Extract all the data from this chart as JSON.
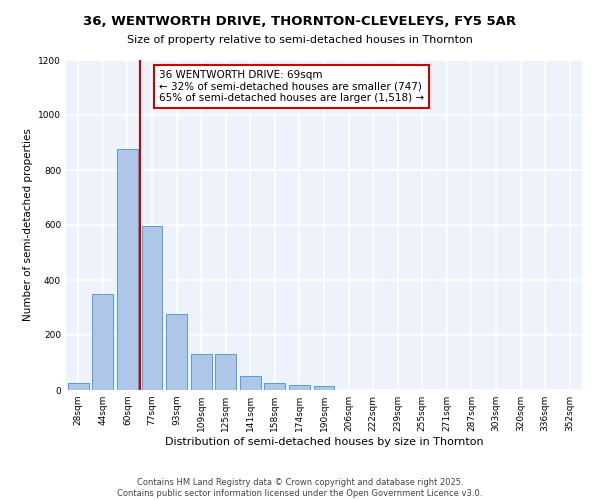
{
  "title": "36, WENTWORTH DRIVE, THORNTON-CLEVELEYS, FY5 5AR",
  "subtitle": "Size of property relative to semi-detached houses in Thornton",
  "xlabel": "Distribution of semi-detached houses by size in Thornton",
  "ylabel": "Number of semi-detached properties",
  "bins": [
    "28sqm",
    "44sqm",
    "60sqm",
    "77sqm",
    "93sqm",
    "109sqm",
    "125sqm",
    "141sqm",
    "158sqm",
    "174sqm",
    "190sqm",
    "206sqm",
    "222sqm",
    "239sqm",
    "255sqm",
    "271sqm",
    "287sqm",
    "303sqm",
    "320sqm",
    "336sqm",
    "352sqm"
  ],
  "values": [
    25,
    350,
    875,
    595,
    275,
    130,
    130,
    50,
    25,
    20,
    13,
    0,
    0,
    0,
    0,
    0,
    0,
    0,
    0,
    0,
    0
  ],
  "property_bin_index": 2,
  "annotation_text": "36 WENTWORTH DRIVE: 69sqm\n← 32% of semi-detached houses are smaller (747)\n65% of semi-detached houses are larger (1,518) →",
  "bar_color": "#aec6e8",
  "bar_edge_color": "#5b9bd5",
  "line_color": "#cc0000",
  "annotation_box_color": "#ffffff",
  "annotation_box_edge": "#cc0000",
  "background_color": "#eef2fb",
  "grid_color": "#ffffff",
  "ylim": [
    0,
    1200
  ],
  "yticks": [
    0,
    200,
    400,
    600,
    800,
    1000,
    1200
  ],
  "footer_line1": "Contains HM Land Registry data © Crown copyright and database right 2025.",
  "footer_line2": "Contains public sector information licensed under the Open Government Licence v3.0.",
  "title_fontsize": 9.5,
  "subtitle_fontsize": 8,
  "xlabel_fontsize": 8,
  "ylabel_fontsize": 7.5,
  "tick_fontsize": 6.5,
  "annotation_fontsize": 7.5,
  "footer_fontsize": 6
}
